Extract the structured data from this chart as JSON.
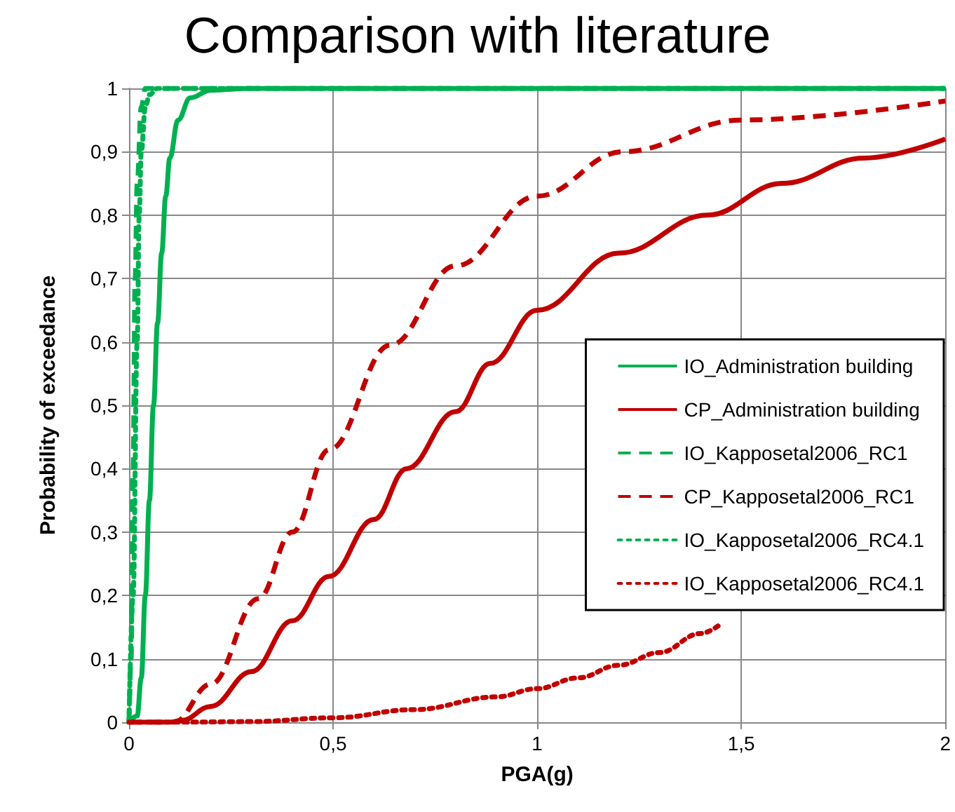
{
  "chart_data": {
    "type": "line",
    "title": "Comparison with literature",
    "xlabel": "PGA(g)",
    "ylabel": "Probability of exceedance",
    "xlim": [
      0,
      2
    ],
    "xticks": [
      0,
      {
        "value": 0.5,
        "label": "0,5"
      },
      1,
      {
        "value": 1.5,
        "label": "1,5"
      },
      2
    ],
    "ylim": [
      0,
      1
    ],
    "yticks": [
      0,
      {
        "value": 0.1,
        "label": "0,1"
      },
      {
        "value": 0.2,
        "label": "0,2"
      },
      {
        "value": 0.3,
        "label": "0,3"
      },
      {
        "value": 0.4,
        "label": "0,4"
      },
      {
        "value": 0.5,
        "label": "0,5"
      },
      {
        "value": 0.6,
        "label": "0,6"
      },
      {
        "value": 0.7,
        "label": "0,7"
      },
      {
        "value": 0.8,
        "label": "0,8"
      },
      {
        "value": 0.9,
        "label": "0,9"
      },
      1
    ],
    "grid": true,
    "legend": "right",
    "marker": "none",
    "series": [
      {
        "name": "IO_Administration building",
        "color": "#00b050",
        "line_style": "solid",
        "x": [
          0,
          0.02,
          0.03,
          0.04,
          0.05,
          0.06,
          0.07,
          0.08,
          0.09,
          0.1,
          0.12,
          0.15,
          0.2,
          0.3,
          2
        ],
        "values": [
          0,
          0.01,
          0.07,
          0.2,
          0.35,
          0.5,
          0.63,
          0.74,
          0.83,
          0.89,
          0.95,
          0.985,
          0.997,
          1,
          1
        ]
      },
      {
        "name": "CP_Administration building",
        "color": "#c00000",
        "line_style": "solid",
        "x": [
          0,
          0.1,
          0.13,
          0.2,
          0.3,
          0.4,
          0.49,
          0.6,
          0.68,
          0.8,
          0.885,
          1,
          1.2,
          1.417,
          1.6,
          1.8,
          2
        ],
        "values": [
          0,
          0,
          0.003,
          0.025,
          0.08,
          0.16,
          0.23,
          0.32,
          0.4,
          0.49,
          0.566,
          0.65,
          0.74,
          0.8,
          0.85,
          0.89,
          0.92
        ]
      },
      {
        "name": "IO_Kapposetal2006_RC1",
        "color": "#00b050",
        "line_style": "dashed",
        "x": [
          0,
          0.005,
          0.01,
          0.015,
          0.02,
          0.03,
          0.04,
          2
        ],
        "values": [
          0,
          0.1,
          0.4,
          0.7,
          0.85,
          0.97,
          1,
          1
        ]
      },
      {
        "name": "CP_Kapposetal2006_RC1",
        "color": "#c00000",
        "line_style": "dashed",
        "x": [
          0,
          0.11,
          0.2,
          0.317,
          0.4,
          0.49,
          0.64,
          0.8,
          1,
          1.21,
          1.5,
          2
        ],
        "values": [
          0,
          0,
          0.06,
          0.195,
          0.3,
          0.43,
          0.595,
          0.72,
          0.83,
          0.9,
          0.95,
          0.98
        ]
      },
      {
        "name": "IO_Kapposetal2006_RC4.1",
        "color": "#00b050",
        "line_style": "dotted",
        "x": [
          0,
          0.01,
          0.02,
          0.025,
          0.03,
          0.04,
          0.05,
          0.07,
          2
        ],
        "values": [
          0,
          0.2,
          0.6,
          0.8,
          0.9,
          0.97,
          0.99,
          1,
          1
        ]
      },
      {
        "name": "IO_Kapposetal2006_RC4.1",
        "color": "#c00000",
        "line_style": "dotted",
        "x": [
          0,
          0.1,
          0.3,
          0.5,
          0.7,
          0.9,
          1,
          1.1,
          1.2,
          1.3,
          1.4,
          1.45
        ],
        "values": [
          0,
          0,
          0.001,
          0.007,
          0.02,
          0.04,
          0.053,
          0.07,
          0.09,
          0.11,
          0.14,
          0.155
        ]
      }
    ]
  }
}
